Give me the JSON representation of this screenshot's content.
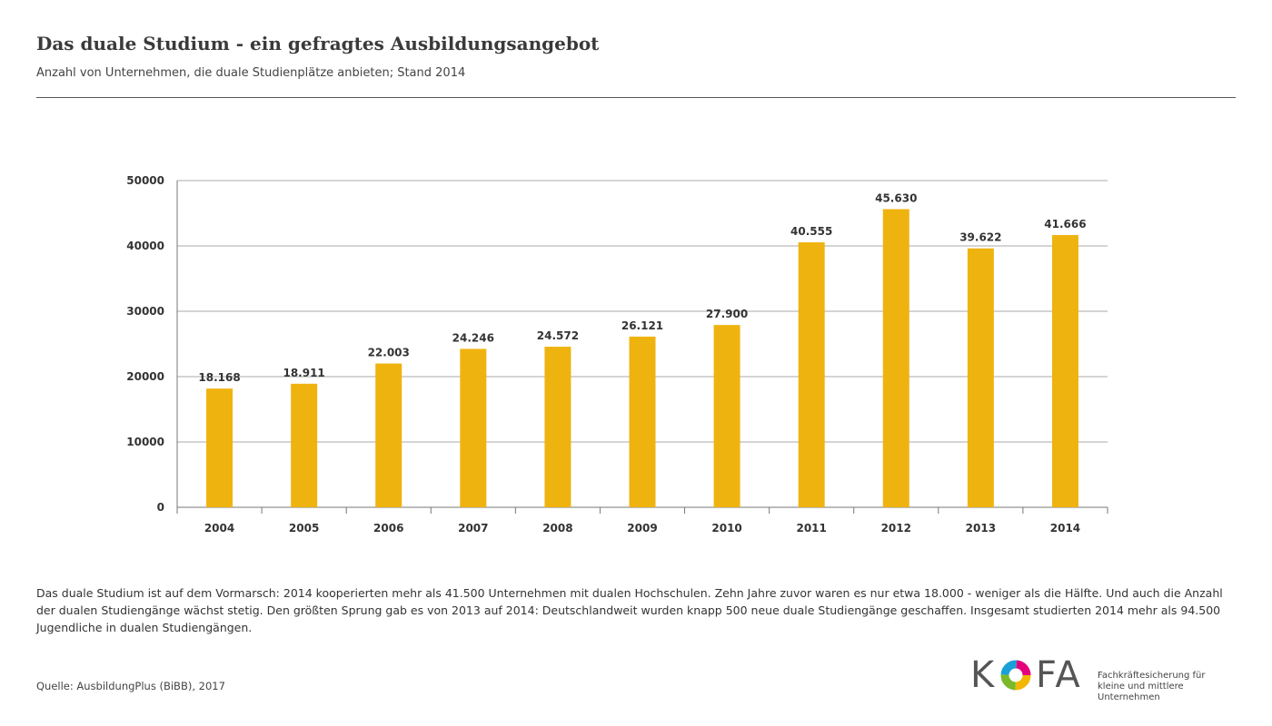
{
  "header": {
    "title": "Das duale Studium - ein gefragtes Ausbildungsangebot",
    "subtitle": "Anzahl von Unternehmen, die duale Studienplätze anbieten; Stand 2014"
  },
  "chart_data": {
    "type": "bar",
    "categories": [
      "2004",
      "2005",
      "2006",
      "2007",
      "2008",
      "2009",
      "2010",
      "2011",
      "2012",
      "2013",
      "2014"
    ],
    "values": [
      18168,
      18911,
      22003,
      24246,
      24572,
      26121,
      27900,
      40555,
      45630,
      39622,
      41666
    ],
    "value_labels": [
      "18.168",
      "18.911",
      "22.003",
      "24.246",
      "24.572",
      "26.121",
      "27.900",
      "40.555",
      "45.630",
      "39.622",
      "41.666"
    ],
    "yticks": [
      "0",
      "10000",
      "20000",
      "30000",
      "40000",
      "50000"
    ],
    "ylim": [
      0,
      50000
    ],
    "grid": true,
    "bar_color": "#efb310",
    "title": "",
    "xlabel": "",
    "ylabel": ""
  },
  "description": "Das duale Studium ist auf dem Vormarsch: 2014 kooperierten mehr als 41.500 Unternehmen mit dualen Hochschulen. Zehn Jahre zuvor waren es nur etwa 18.000 - weniger als die Hälfte. Und auch die Anzahl der dualen Studiengänge wächst stetig. Den größten Sprung gab es von 2013 auf 2014: Deutschlandweit wurden knapp 500 neue duale Studiengänge geschaffen. Insgesamt studierten 2014 mehr als 94.500 Jugendliche in dualen Studiengängen.",
  "source": "Quelle: AusbildungPlus (BiBB), 2017",
  "logo": {
    "k": "K",
    "fa": "FA",
    "tagline_1": "Fachkräftesicherung für",
    "tagline_2": "kleine und mittlere Unternehmen"
  }
}
